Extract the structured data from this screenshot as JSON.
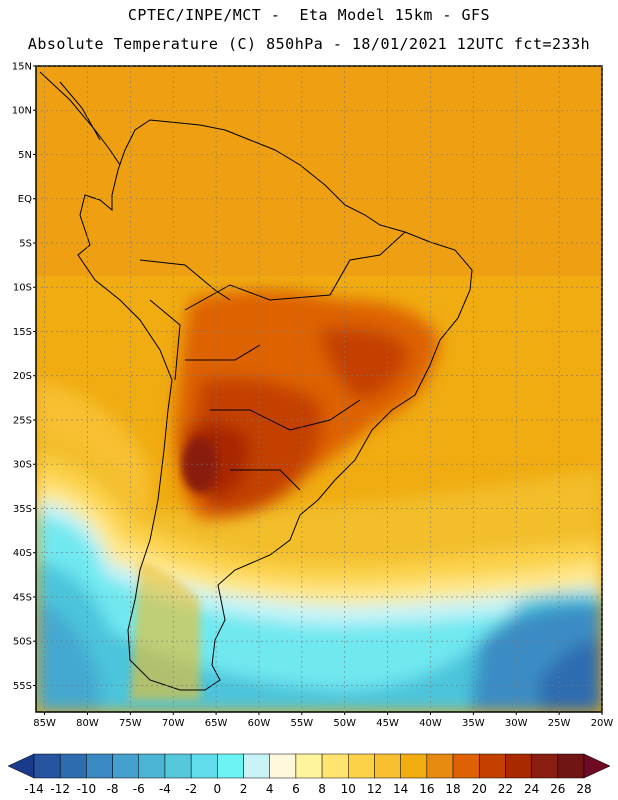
{
  "header": {
    "line1": "CPTEC/INPE/MCT -  Eta Model 15km - GFS",
    "line2": "Absolute Temperature (C) 850hPa - 18/01/2021 12UTC fct=233h"
  },
  "map": {
    "lat_labels": [
      "15N",
      "10N",
      "5N",
      "EQ",
      "5S",
      "10S",
      "15S",
      "20S",
      "25S",
      "30S",
      "35S",
      "40S",
      "45S",
      "50S",
      "55S"
    ],
    "lon_labels": [
      "85W",
      "80W",
      "75W",
      "70W",
      "65W",
      "60W",
      "55W",
      "50W",
      "45W",
      "40W",
      "35W",
      "30W",
      "25W",
      "20W"
    ],
    "lat_range": [
      15,
      -58
    ],
    "lon_range": [
      -86,
      -20
    ],
    "land_color": "#e8a020",
    "region_colors": {
      "ocean_warm": "#f0ac10",
      "ocean_mid": "#f2be2a",
      "cool_yellow": "#ffe88a",
      "cold_blue": "#70e8f0",
      "deep_blue": "#3aa0d0"
    }
  },
  "colorbar": {
    "labels": [
      "-14",
      "-12",
      "-10",
      "-8",
      "-6",
      "-4",
      "-2",
      "0",
      "2",
      "4",
      "6",
      "8",
      "10",
      "12",
      "14",
      "16",
      "18",
      "20",
      "22",
      "24",
      "26",
      "28"
    ],
    "colors": [
      "#1a3a8c",
      "#2654a0",
      "#2e6cb0",
      "#3a88c4",
      "#44a0cc",
      "#4cb4d4",
      "#56c8dc",
      "#60dcea",
      "#6cf4f4",
      "#c8f4f8",
      "#fff8dc",
      "#fff49c",
      "#ffe470",
      "#fcd24a",
      "#f8c030",
      "#f0ac10",
      "#e88a10",
      "#de6204",
      "#c44000",
      "#a82800",
      "#8a1e10",
      "#701414"
    ]
  }
}
